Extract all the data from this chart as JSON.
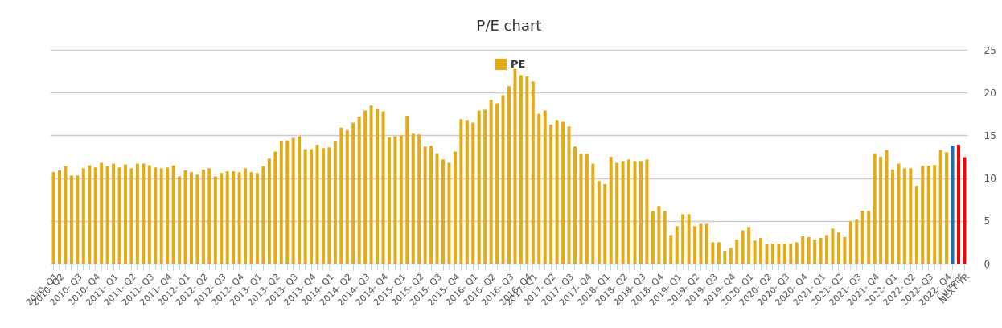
{
  "chart_data": {
    "type": "bar",
    "title": "P/E chart",
    "categories": [
      "2010- Q1",
      "2010- Q2",
      null,
      null,
      "2010- Q3",
      null,
      null,
      "2010- Q4",
      null,
      null,
      "2011- Q1",
      null,
      null,
      "2011- Q2",
      null,
      null,
      "2011- Q3",
      null,
      null,
      "2011- Q4",
      null,
      null,
      "2012- Q1",
      null,
      null,
      "2012- Q2",
      null,
      null,
      "2012- Q3",
      null,
      null,
      "2012- Q4",
      null,
      null,
      "2013- Q1",
      null,
      null,
      "2013- Q2",
      null,
      null,
      "2013- Q3",
      null,
      null,
      "2013- Q4",
      null,
      null,
      "2014- Q1",
      null,
      null,
      "2014- Q2",
      null,
      null,
      "2014- Q3",
      null,
      null,
      "2014- Q4",
      null,
      null,
      "2015- Q1",
      null,
      null,
      "2015- Q2",
      null,
      null,
      "2015- Q3",
      null,
      null,
      "2015- Q4",
      null,
      null,
      "2016- Q1",
      null,
      null,
      "2016- Q2",
      null,
      null,
      "2016- Q3",
      null,
      null,
      "2016- Q4",
      "2017- Q1",
      null,
      null,
      "2017- Q2",
      null,
      null,
      "2017- Q3",
      null,
      null,
      "2017- Q4",
      null,
      null,
      "2018- Q1",
      null,
      null,
      "2018- Q2",
      null,
      null,
      "2018- Q3",
      null,
      null,
      "2018- Q4",
      null,
      null,
      "2019- Q1",
      null,
      null,
      "2019- Q2",
      null,
      null,
      "2019- Q3",
      null,
      null,
      "2019- Q4",
      null,
      null,
      "2020- Q1",
      null,
      null,
      "2020- Q2",
      null,
      null,
      "2020- Q3",
      null,
      null,
      "2020- Q4",
      null,
      null,
      "2021- Q1",
      null,
      null,
      "2021- Q2",
      null,
      null,
      "2021- Q3",
      null,
      null,
      "2021- Q4",
      null,
      null,
      "2022- Q1",
      null,
      null,
      "2022- Q2",
      null,
      null,
      "2022- Q3",
      null,
      null,
      "2022- Q4",
      null,
      "Current",
      "NEXT YR"
    ],
    "series": [
      {
        "name": "PE",
        "color": "#e3ac17",
        "values": [
          10.7,
          10.9,
          11.4,
          10.3,
          10.3,
          11.15,
          11.5,
          11.25,
          11.8,
          11.4,
          11.7,
          11.25,
          11.6,
          11.15,
          11.7,
          11.7,
          11.5,
          11.25,
          11.15,
          11.25,
          11.5,
          10.2,
          10.9,
          10.7,
          10.4,
          11.0,
          11.15,
          10.2,
          10.6,
          10.8,
          10.8,
          10.7,
          11.15,
          10.7,
          10.6,
          11.4,
          12.3,
          13.1,
          14.3,
          14.4,
          14.7,
          14.9,
          13.4,
          13.4,
          13.9,
          13.5,
          13.6,
          14.3,
          15.9,
          15.6,
          16.5,
          17.2,
          17.9,
          18.5,
          18.1,
          17.8,
          14.75,
          14.9,
          15.0,
          17.3,
          15.2,
          15.1,
          13.7,
          13.8,
          12.9,
          12.2,
          11.8,
          13.1,
          16.9,
          16.8,
          16.5,
          17.9,
          18.0,
          19.15,
          18.75,
          19.7,
          20.75,
          22.8,
          22.05,
          21.9,
          21.3,
          17.5,
          17.9,
          16.25,
          16.8,
          16.6,
          16.05,
          13.7,
          12.85,
          12.85,
          11.7,
          9.65,
          9.3,
          12.5,
          11.8,
          12.0,
          12.2,
          12.0,
          12.0,
          12.2,
          6.15,
          6.75,
          6.15,
          3.35,
          4.4,
          5.8,
          5.8,
          4.4,
          4.65,
          4.65,
          2.5,
          2.5,
          1.5,
          1.85,
          2.8,
          3.9,
          4.3,
          2.7,
          3.0,
          2.25,
          2.35,
          2.35,
          2.35,
          2.35,
          2.5,
          3.2,
          3.1,
          2.8,
          3.0,
          3.35,
          4.1,
          3.65,
          3.1,
          4.95,
          5.15,
          6.2,
          6.2,
          12.85,
          12.5,
          13.3,
          11.0,
          11.7,
          11.15,
          11.15,
          9.1,
          11.45,
          11.45,
          11.55,
          13.3,
          13.05,
          13.8,
          13.9,
          12.45
        ],
        "colors": [
          "#e3ac17",
          "#e3ac17",
          "#e3ac17",
          "#e3ac17",
          "#e3ac17",
          "#e3ac17",
          "#e3ac17",
          "#e3ac17",
          "#e3ac17",
          "#e3ac17",
          "#e3ac17",
          "#e3ac17",
          "#e3ac17",
          "#e3ac17",
          "#e3ac17",
          "#e3ac17",
          "#e3ac17",
          "#e3ac17",
          "#e3ac17",
          "#e3ac17",
          "#e3ac17",
          "#e3ac17",
          "#e3ac17",
          "#e3ac17",
          "#e3ac17",
          "#e3ac17",
          "#e3ac17",
          "#e3ac17",
          "#e3ac17",
          "#e3ac17",
          "#e3ac17",
          "#e3ac17",
          "#e3ac17",
          "#e3ac17",
          "#e3ac17",
          "#e3ac17",
          "#e3ac17",
          "#e3ac17",
          "#e3ac17",
          "#e3ac17",
          "#e3ac17",
          "#e3ac17",
          "#e3ac17",
          "#e3ac17",
          "#e3ac17",
          "#e3ac17",
          "#e3ac17",
          "#e3ac17",
          "#e3ac17",
          "#e3ac17",
          "#e3ac17",
          "#e3ac17",
          "#e3ac17",
          "#e3ac17",
          "#e3ac17",
          "#e3ac17",
          "#e3ac17",
          "#e3ac17",
          "#e3ac17",
          "#e3ac17",
          "#e3ac17",
          "#e3ac17",
          "#e3ac17",
          "#e3ac17",
          "#e3ac17",
          "#e3ac17",
          "#e3ac17",
          "#e3ac17",
          "#e3ac17",
          "#e3ac17",
          "#e3ac17",
          "#e3ac17",
          "#e3ac17",
          "#e3ac17",
          "#e3ac17",
          "#e3ac17",
          "#e3ac17",
          "#e3ac17",
          "#e3ac17",
          "#e3ac17",
          "#e3ac17",
          "#e3ac17",
          "#e3ac17",
          "#e3ac17",
          "#e3ac17",
          "#e3ac17",
          "#e3ac17",
          "#e3ac17",
          "#e3ac17",
          "#e3ac17",
          "#e3ac17",
          "#e3ac17",
          "#e3ac17",
          "#e3ac17",
          "#e3ac17",
          "#e3ac17",
          "#e3ac17",
          "#e3ac17",
          "#e3ac17",
          "#e3ac17",
          "#e3ac17",
          "#e3ac17",
          "#e3ac17",
          "#e3ac17",
          "#e3ac17",
          "#e3ac17",
          "#e3ac17",
          "#e3ac17",
          "#e3ac17",
          "#e3ac17",
          "#e3ac17",
          "#e3ac17",
          "#e3ac17",
          "#e3ac17",
          "#e3ac17",
          "#e3ac17",
          "#e3ac17",
          "#e3ac17",
          "#e3ac17",
          "#e3ac17",
          "#e3ac17",
          "#e3ac17",
          "#e3ac17",
          "#e3ac17",
          "#e3ac17",
          "#e3ac17",
          "#e3ac17",
          "#e3ac17",
          "#e3ac17",
          "#e3ac17",
          "#e3ac17",
          "#e3ac17",
          "#e3ac17",
          "#e3ac17",
          "#e3ac17",
          "#e3ac17",
          "#e3ac17",
          "#e3ac17",
          "#e3ac17",
          "#e3ac17",
          "#e3ac17",
          "#e3ac17",
          "#e3ac17",
          "#e3ac17",
          "#e3ac17",
          "#e3ac17",
          "#e3ac17",
          "#e3ac17",
          "#e3ac17",
          "#e3ac17",
          "#1f6fb0",
          "#ff0000",
          "#ff0000"
        ]
      }
    ],
    "ylim": [
      0,
      25
    ],
    "yticks": [
      0,
      5,
      10,
      15,
      20,
      25
    ],
    "grid": "y",
    "legend": "top"
  }
}
